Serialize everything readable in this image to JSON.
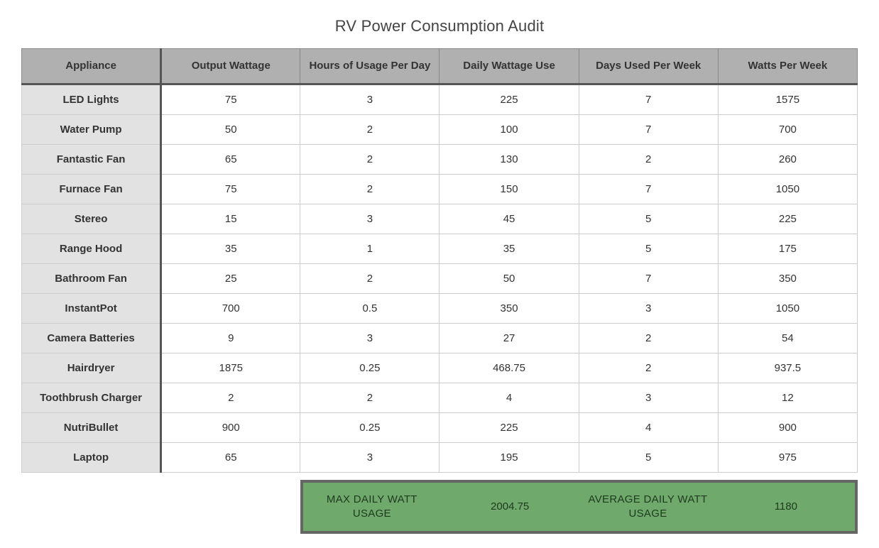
{
  "title": "RV Power Consumption Audit",
  "table": {
    "columns": [
      "Appliance",
      "Output Wattage",
      "Hours of Usage Per Day",
      "Daily Wattage Use",
      "Days Used Per Week",
      "Watts Per Week"
    ],
    "rows": [
      [
        "LED Lights",
        "75",
        "3",
        "225",
        "7",
        "1575"
      ],
      [
        "Water Pump",
        "50",
        "2",
        "100",
        "7",
        "700"
      ],
      [
        "Fantastic Fan",
        "65",
        "2",
        "130",
        "2",
        "260"
      ],
      [
        "Furnace Fan",
        "75",
        "2",
        "150",
        "7",
        "1050"
      ],
      [
        "Stereo",
        "15",
        "3",
        "45",
        "5",
        "225"
      ],
      [
        "Range Hood",
        "35",
        "1",
        "35",
        "5",
        "175"
      ],
      [
        "Bathroom Fan",
        "25",
        "2",
        "50",
        "7",
        "350"
      ],
      [
        "InstantPot",
        "700",
        "0.5",
        "350",
        "3",
        "1050"
      ],
      [
        "Camera Batteries",
        "9",
        "3",
        "27",
        "2",
        "54"
      ],
      [
        "Hairdryer",
        "1875",
        "0.25",
        "468.75",
        "2",
        "937.5"
      ],
      [
        "Toothbrush Charger",
        "2",
        "2",
        "4",
        "3",
        "12"
      ],
      [
        "NutriBullet",
        "900",
        "0.25",
        "225",
        "4",
        "900"
      ],
      [
        "Laptop",
        "65",
        "3",
        "195",
        "5",
        "975"
      ]
    ],
    "header_bg": "#b0b0b0",
    "rowhead_bg": "#e2e2e2",
    "border_color": "#cccccc",
    "heavy_border_color": "#555555"
  },
  "summary": {
    "max_label": "MAX DAILY WATT USAGE",
    "max_value": "2004.75",
    "avg_label": "AVERAGE DAILY WATT USAGE",
    "avg_value": "1180",
    "bg": "#6fa96b",
    "border": "#666666"
  }
}
